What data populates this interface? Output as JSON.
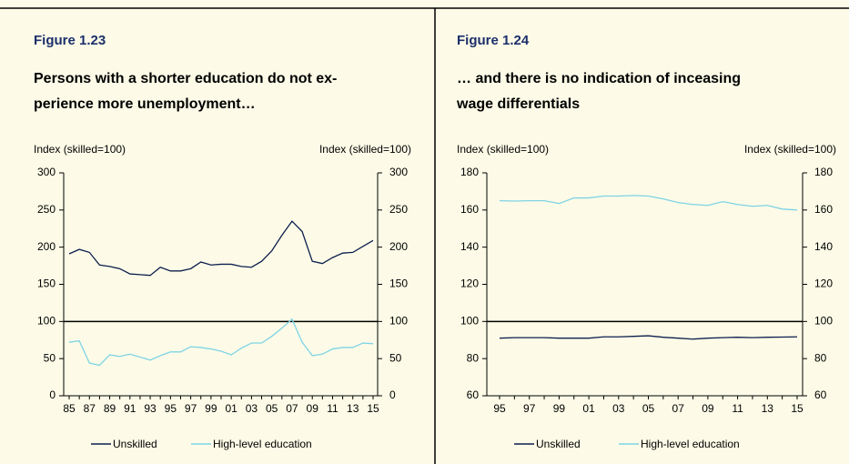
{
  "chart_data": [
    {
      "type": "line",
      "title": "Figure 1.23",
      "subtitle": [
        "Persons with a shorter education do not ex-",
        "perience more unemployment…"
      ],
      "ylabel": "Index (skilled=100)",
      "y2label": "Index (skilled=100)",
      "categories": [
        "85",
        null,
        "87",
        null,
        "89",
        null,
        "91",
        null,
        "93",
        null,
        "95",
        null,
        "97",
        null,
        "99",
        null,
        "01",
        null,
        "03",
        null,
        "05",
        null,
        "07",
        null,
        "09",
        null,
        "11",
        null,
        "13",
        null,
        "15"
      ],
      "series": [
        {
          "name": "Unskilled",
          "color": "#0d1f4e",
          "values": [
            191,
            197,
            193,
            176,
            174,
            171,
            164,
            163,
            162,
            173,
            168,
            168,
            171,
            180,
            176,
            177,
            177,
            174,
            173,
            181,
            195,
            216,
            235,
            221,
            181,
            178,
            186,
            192,
            193,
            201,
            209
          ]
        },
        {
          "name": "High-level education",
          "color": "#7fd3e6",
          "values": [
            72,
            74,
            44,
            41,
            55,
            53,
            56,
            52,
            48,
            54,
            59,
            59,
            66,
            65,
            63,
            60,
            55,
            64,
            71,
            71,
            80,
            91,
            103,
            72,
            54,
            56,
            63,
            65,
            65,
            71,
            70
          ]
        }
      ],
      "ylim": [
        0,
        300
      ],
      "yticks": [
        0,
        50,
        100,
        150,
        200,
        250,
        300
      ],
      "y2lim": [
        0,
        300
      ],
      "y2ticks": [
        0,
        50,
        100,
        150,
        200,
        250,
        300
      ],
      "refline": 100
    },
    {
      "type": "line",
      "title": "Figure 1.24",
      "subtitle": [
        "… and there is no indication of inceasing",
        "wage differentials"
      ],
      "ylabel": "Index (skilled=100)",
      "y2label": "Index (skilled=100)",
      "categories": [
        "95",
        null,
        "97",
        null,
        "99",
        null,
        "01",
        null,
        "03",
        null,
        "05",
        null,
        "07",
        null,
        "09",
        null,
        "11",
        null,
        "13",
        null,
        "15"
      ],
      "series": [
        {
          "name": "Unskilled",
          "color": "#0d1f4e",
          "values": [
            91,
            91.3,
            91.3,
            91.3,
            91,
            91,
            91,
            91.7,
            91.7,
            92,
            92.3,
            91.5,
            91,
            90.5,
            91,
            91.3,
            91.5,
            91.3,
            91.5,
            91.6,
            91.7
          ]
        },
        {
          "name": "High-level education",
          "color": "#7fd3e6",
          "values": [
            165,
            164.8,
            165,
            165,
            163.5,
            166.5,
            166.5,
            167.5,
            167.5,
            167.8,
            167.5,
            166,
            164,
            163,
            162.5,
            164.5,
            163,
            162,
            162.5,
            160.5,
            160
          ]
        }
      ],
      "ylim": [
        60,
        180
      ],
      "yticks": [
        60,
        80,
        100,
        120,
        140,
        160,
        180
      ],
      "y2lim": [
        60,
        180
      ],
      "y2ticks": [
        60,
        80,
        100,
        120,
        140,
        160,
        180
      ],
      "refline": 100
    }
  ]
}
